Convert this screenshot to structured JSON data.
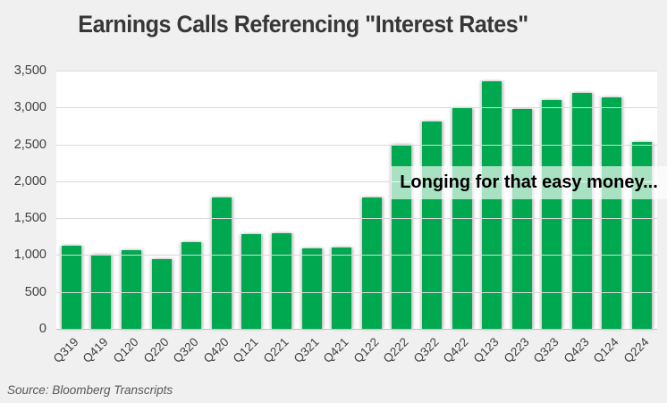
{
  "source_note": "Source: Bloomberg Transcripts",
  "colors": {
    "bar": "#00A94F",
    "background": "#F0F0F0",
    "plot_background": "#FFFFFF",
    "gridline": "#D9D9D9",
    "axis_text": "#404040",
    "title_text": "#373737",
    "source_text": "#595959",
    "annotation_text": "#000000",
    "annotation_background": "rgba(255,255,255,0.66)"
  },
  "chart_data": {
    "type": "bar",
    "title": "Earnings Calls Referencing \"Interest Rates\"",
    "categories": [
      "Q319",
      "Q419",
      "Q120",
      "Q220",
      "Q320",
      "Q420",
      "Q121",
      "Q221",
      "Q321",
      "Q421",
      "Q122",
      "Q222",
      "Q322",
      "Q422",
      "Q123",
      "Q223",
      "Q323",
      "Q423",
      "Q124",
      "Q224"
    ],
    "values": [
      1130,
      1010,
      1060,
      940,
      1170,
      1780,
      1280,
      1300,
      1090,
      1100,
      1780,
      2490,
      2810,
      2990,
      3360,
      2980,
      3100,
      3200,
      3140,
      2530
    ],
    "xlabel": "",
    "ylabel": "",
    "ylim": [
      0,
      3500
    ],
    "yticks_top_to_bottom": [
      "3,500",
      "3,000",
      "2,500",
      "2,000",
      "1,500",
      "1,000",
      "500",
      "0"
    ],
    "grid": true,
    "legend": false,
    "annotation": "Longing for that easy money..."
  }
}
